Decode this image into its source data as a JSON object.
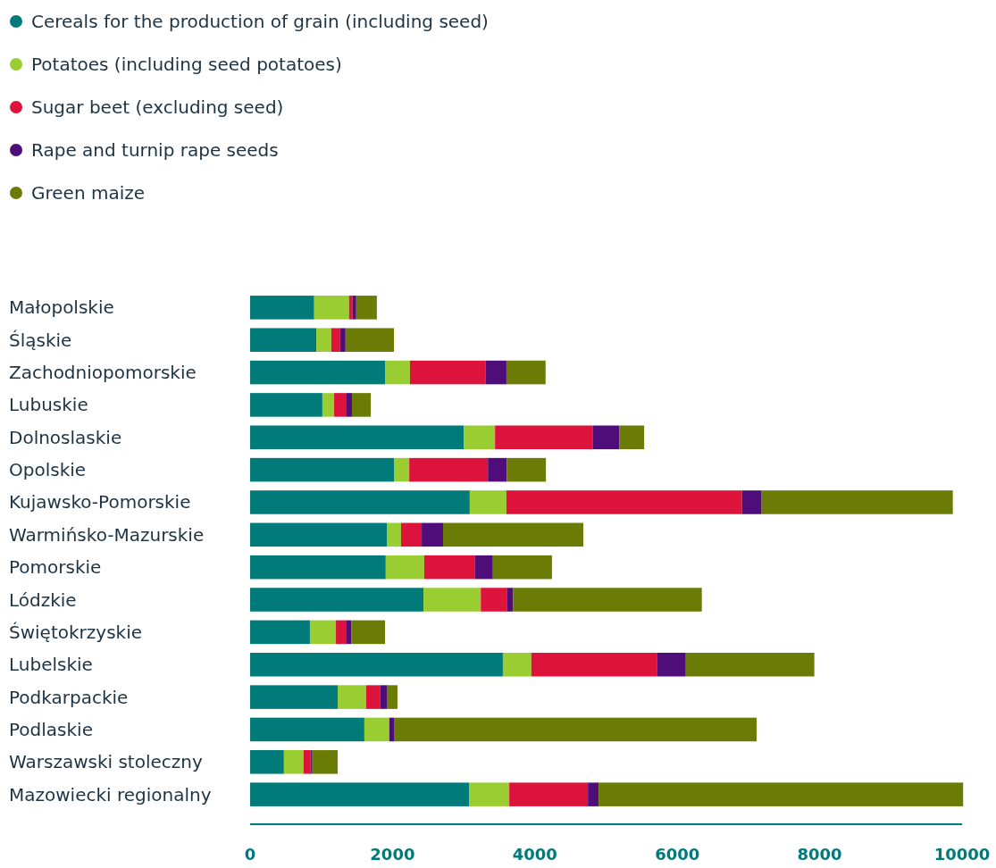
{
  "chart_data": {
    "type": "bar",
    "orientation": "horizontal",
    "stacked": true,
    "legend": "top left",
    "grid": false,
    "categories": [
      "Małopolskie",
      "Śląskie",
      "Zachodniopomorskie",
      "Lubuskie",
      "Dolnoslaskie",
      "Opolskie",
      "Kujawsko-Pomorskie",
      "Warmińsko-Mazurskie",
      "Pomorskie",
      "Lódzkie",
      "Świętokrzyskie",
      "Lubelskie",
      "Podkarpackie",
      "Podlaskie",
      "Warszawski stoleczny",
      "Mazowiecki regionalny"
    ],
    "xlim": [
      0,
      10000
    ],
    "xticks": [
      0,
      2000,
      4000,
      6000,
      8000,
      10000
    ],
    "series": [
      {
        "name": "Cereals for the production of grain (including seed)",
        "color": "#007b7a",
        "values": [
          900,
          930,
          1895,
          1015,
          3000,
          2020,
          3085,
          1920,
          1905,
          2435,
          840,
          3550,
          1230,
          1605,
          475,
          3075
        ]
      },
      {
        "name": "Potatoes (including seed potatoes)",
        "color": "#9acd32",
        "values": [
          490,
          210,
          350,
          165,
          440,
          215,
          515,
          200,
          540,
          805,
          365,
          400,
          400,
          350,
          275,
          565
        ]
      },
      {
        "name": "Sugar beet (excluding seed)",
        "color": "#dc143c",
        "values": [
          50,
          125,
          1065,
          175,
          1370,
          1105,
          3310,
          290,
          715,
          365,
          150,
          1770,
          200,
          0,
          100,
          1105
        ]
      },
      {
        "name": "Rape and turnip rape seeds",
        "color": "#4f0d7a",
        "values": [
          50,
          75,
          290,
          75,
          375,
          265,
          275,
          300,
          250,
          90,
          65,
          400,
          90,
          65,
          15,
          150
        ]
      },
      {
        "name": "Green maize",
        "color": "#6a7b06",
        "values": [
          290,
          680,
          550,
          265,
          350,
          550,
          2685,
          1970,
          830,
          2650,
          475,
          1805,
          150,
          5095,
          365,
          5120
        ]
      }
    ]
  }
}
